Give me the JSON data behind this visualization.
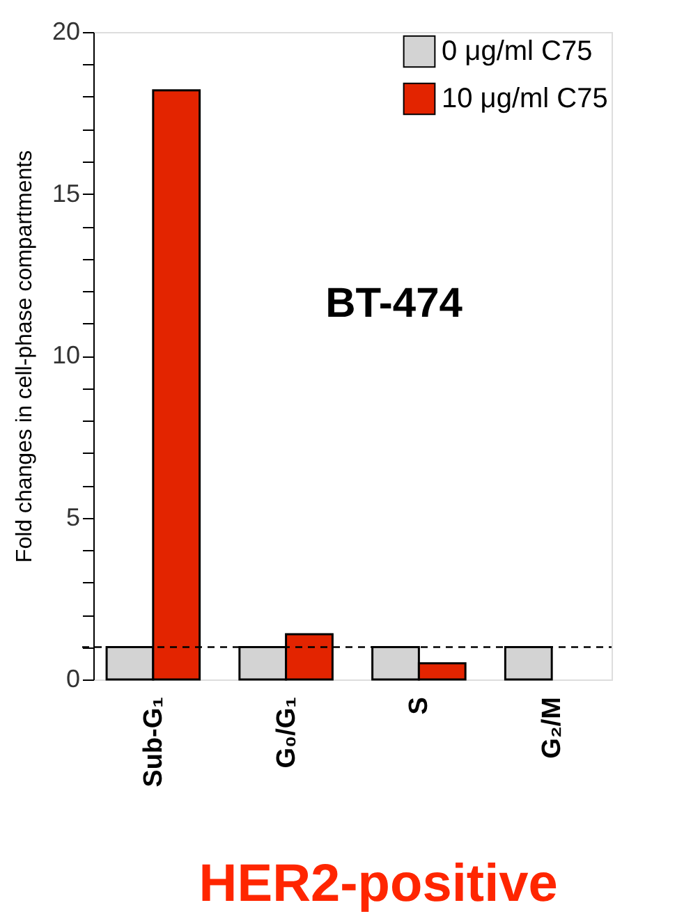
{
  "chart_data": {
    "type": "bar",
    "categories": [
      "Sub-G₁",
      "G₀/G₁",
      "S",
      "G₂/M"
    ],
    "ylabel": "Fold changes in cell-phase compartments",
    "series": [
      {
        "name": "0 μg/ml C75",
        "color": "#d3d3d3",
        "values": [
          1,
          1,
          1,
          1
        ]
      },
      {
        "name": "10 μg/ml C75",
        "color": "#e32400",
        "values": [
          18.2,
          1.4,
          0.5,
          null
        ]
      }
    ],
    "ylim": [
      0,
      20
    ],
    "yticks": [
      0,
      {
        "value": 1,
        "label": null
      },
      {
        "value": 2,
        "label": null
      },
      {
        "value": 3,
        "label": null
      },
      {
        "value": 4,
        "label": null
      },
      5,
      {
        "value": 6,
        "label": null
      },
      {
        "value": 7,
        "label": null
      },
      {
        "value": 8,
        "label": null
      },
      {
        "value": 9,
        "label": null
      },
      10,
      {
        "value": 11,
        "label": null
      },
      {
        "value": 12,
        "label": null
      },
      {
        "value": 13,
        "label": null
      },
      {
        "value": 14,
        "label": null
      },
      15,
      {
        "value": 16,
        "label": null
      },
      {
        "value": 17,
        "label": null
      },
      {
        "value": 18,
        "label": null
      },
      {
        "value": 19,
        "label": null
      },
      20
    ],
    "ref_lines": [
      {
        "axis": "y",
        "value": 1,
        "line_style": "dashed",
        "color": "#000000"
      }
    ],
    "annotations": [
      "BT-474",
      "HER2-positive"
    ],
    "legend": "top right",
    "grid": false
  }
}
